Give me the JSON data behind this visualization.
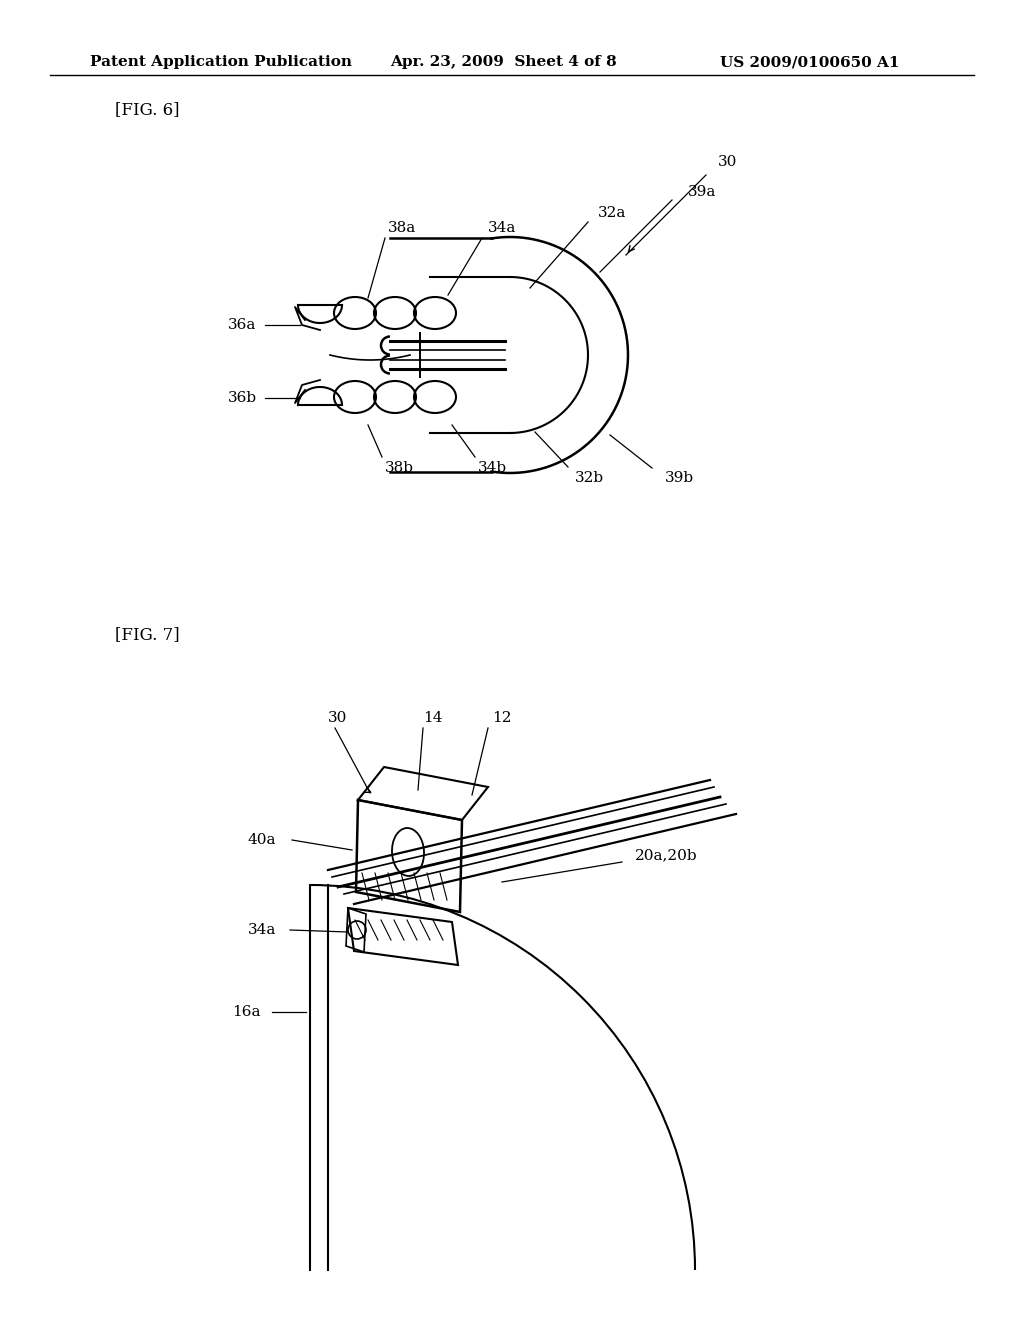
{
  "background_color": "#ffffff",
  "header_text": "Patent Application Publication",
  "header_date": "Apr. 23, 2009  Sheet 4 of 8",
  "header_patent": "US 2009/0100650 A1",
  "fig6_label": "[FIG. 6]",
  "fig7_label": "[FIG. 7]",
  "text_color": "#000000",
  "line_color": "#000000",
  "header_fontsize": 11,
  "label_fontsize": 12,
  "ref_fontsize": 11
}
